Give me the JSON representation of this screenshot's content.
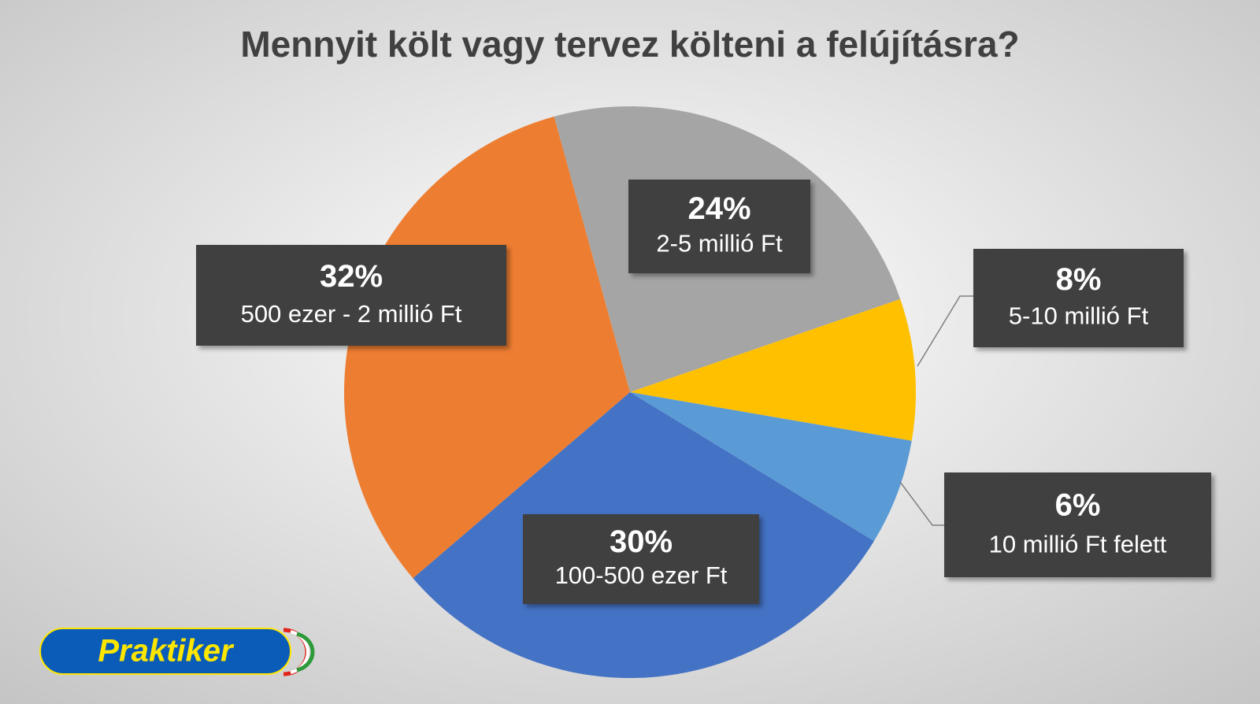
{
  "chart_data": {
    "type": "pie",
    "title": "Mennyit költ vagy tervez költeni a felújításra?",
    "categories": [
      "2-5 millió Ft",
      "5-10 millió Ft",
      "10 millió Ft felett",
      "100-500 ezer Ft",
      "500 ezer - 2 millió Ft"
    ],
    "values": [
      24,
      8,
      6,
      30,
      32
    ],
    "value_labels": [
      "24%",
      "8%",
      "6%",
      "30%",
      "32%"
    ],
    "colors": [
      "#a5a5a5",
      "#ffc000",
      "#5b9bd5",
      "#4472c4",
      "#ed7d31"
    ]
  },
  "logo": "Praktiker"
}
